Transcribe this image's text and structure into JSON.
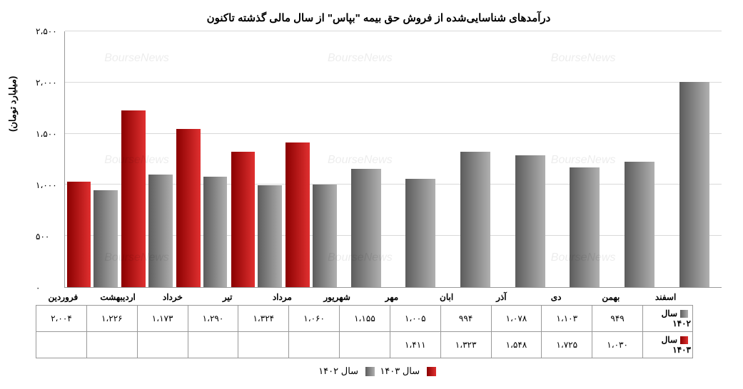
{
  "chart": {
    "type": "bar",
    "title": "درآمدهای شناسایی‌شده از فروش حق بیمه \"بپاس\" از سال مالی گذشته تاکنون",
    "title_fontsize": 15,
    "ylabel": "(میلیارد تومان)",
    "label_fontsize": 13,
    "ylim": [
      0,
      2500
    ],
    "ytick_step": 500,
    "yticks": [
      "۰",
      "۵۰۰",
      "۱،۰۰۰",
      "۱،۵۰۰",
      "۲،۰۰۰",
      "۲،۵۰۰"
    ],
    "background_color": "#ffffff",
    "grid_color": "#d9d9d9",
    "axis_color": "#999999",
    "bar_width": 0.44,
    "categories": [
      "فروردین",
      "اردیبهشت",
      "خرداد",
      "تیر",
      "مرداد",
      "شهریور",
      "مهر",
      "ابان",
      "آذر",
      "دی",
      "بهمن",
      "اسفند"
    ],
    "series": [
      {
        "name": "سال ۱۴۰۲",
        "legend_label": "سال ۱۴۰۲",
        "gradient": [
          "#5c5c5c",
          "#b0b0b0"
        ],
        "values": [
          949,
          1103,
          1078,
          994,
          1005,
          1155,
          1060,
          1324,
          1290,
          1173,
          1226,
          2004
        ],
        "display_values": [
          "۹۴۹",
          "۱،۱۰۳",
          "۱،۰۷۸",
          "۹۹۴",
          "۱،۰۰۵",
          "۱،۱۵۵",
          "۱،۰۶۰",
          "۱،۳۲۴",
          "۱،۲۹۰",
          "۱،۱۷۳",
          "۱،۲۲۶",
          "۲،۰۰۴"
        ]
      },
      {
        "name": "سال ۱۴۰۳",
        "legend_label": "سال ۱۴۰۳",
        "gradient": [
          "#8a0000",
          "#e03030"
        ],
        "values": [
          1030,
          1725,
          1548,
          1323,
          1411,
          null,
          null,
          null,
          null,
          null,
          null,
          null
        ],
        "display_values": [
          "۱،۰۳۰",
          "۱،۷۲۵",
          "۱،۵۴۸",
          "۱،۳۲۳",
          "۱،۴۱۱",
          "",
          "",
          "",
          "",
          "",
          "",
          ""
        ]
      }
    ],
    "watermark_text": "BourseNews"
  }
}
